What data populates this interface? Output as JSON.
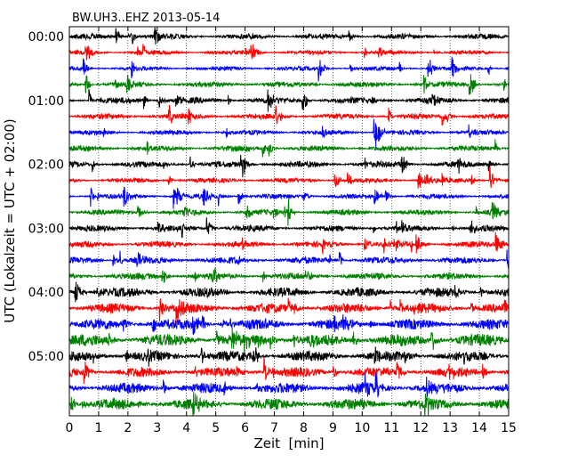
{
  "chart_data": {
    "type": "line",
    "title": "BW.UH3..EHZ 2013-05-14",
    "xlabel": "Zeit  [min]",
    "ylabel": "UTC (Lokalzeit = UTC + 02:00)",
    "xlim": [
      0,
      15
    ],
    "x_ticks": [
      "0",
      "1",
      "2",
      "3",
      "4",
      "5",
      "6",
      "7",
      "8",
      "9",
      "10",
      "11",
      "12",
      "13",
      "14",
      "15"
    ],
    "y_ticks": [
      "00:00",
      "01:00",
      "02:00",
      "03:00",
      "04:00",
      "05:00"
    ],
    "trace_rows": 24,
    "rows_per_hour": 4,
    "row_colors": [
      "#000000",
      "#ff0000",
      "#0000ff",
      "#008000"
    ],
    "vertical_gridlines": true,
    "note": "helicorder: each row = 15 minutes of the EHZ channel, colors cycle black/red/blue/green",
    "row_amplitude": [
      0.45,
      0.35,
      0.35,
      0.45,
      0.5,
      0.45,
      0.4,
      0.45,
      0.5,
      0.4,
      0.4,
      0.45,
      0.5,
      0.5,
      0.55,
      0.55,
      0.75,
      0.8,
      0.85,
      1.0,
      0.85,
      0.8,
      0.85,
      0.9
    ]
  }
}
